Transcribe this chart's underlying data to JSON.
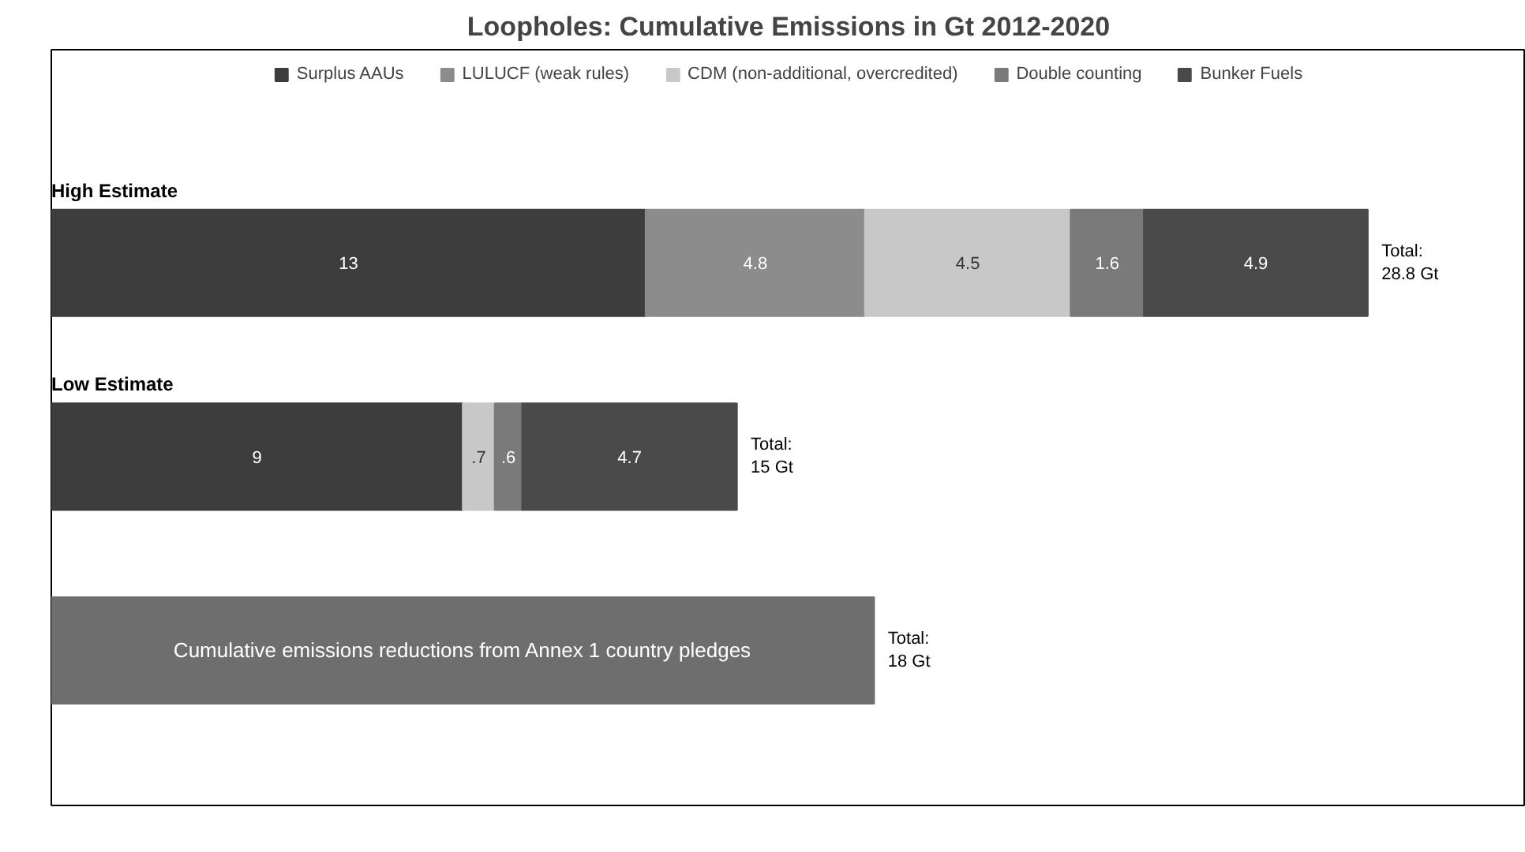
{
  "chart_data": {
    "type": "bar",
    "orientation": "horizontal",
    "stacked": true,
    "title": "Loopholes: Cumulative Emissions in Gt 2012-2020",
    "categories": [
      "High Estimate",
      "Low Estimate",
      null
    ],
    "series": [
      {
        "name": "Surplus AAUs",
        "color": "#3d3d3d",
        "values": [
          13,
          9,
          null
        ],
        "value_labels": [
          "13",
          "9",
          null
        ]
      },
      {
        "name": "LULUCF (weak rules)",
        "color": "#8c8c8c",
        "values": [
          4.8,
          null,
          null
        ],
        "value_labels": [
          "4.8",
          null,
          null
        ]
      },
      {
        "name": "CDM (non-additional, overcredited)",
        "color": "#c8c8c8",
        "values": [
          4.5,
          0.7,
          null
        ],
        "value_labels": [
          "4.5",
          ".7",
          null
        ]
      },
      {
        "name": "Double counting",
        "color": "#7a7a7a",
        "values": [
          1.6,
          0.6,
          null
        ],
        "value_labels": [
          "1.6",
          ".6",
          null
        ]
      },
      {
        "name": "Bunker Fuels",
        "color": "#4a4a4a",
        "values": [
          4.9,
          4.7,
          null
        ],
        "value_labels": [
          "4.9",
          "4.7",
          null
        ]
      },
      {
        "color": "#6e6e6e",
        "values": [
          null,
          null,
          18
        ],
        "value_labels": [
          null,
          null,
          "Cumulative emissions reductions from Annex 1 country pledges"
        ]
      }
    ],
    "totals": [
      "Total: 28.8 Gt",
      "Total: 15 Gt",
      "Total: 18 Gt"
    ],
    "legend": "top",
    "grid": false
  }
}
